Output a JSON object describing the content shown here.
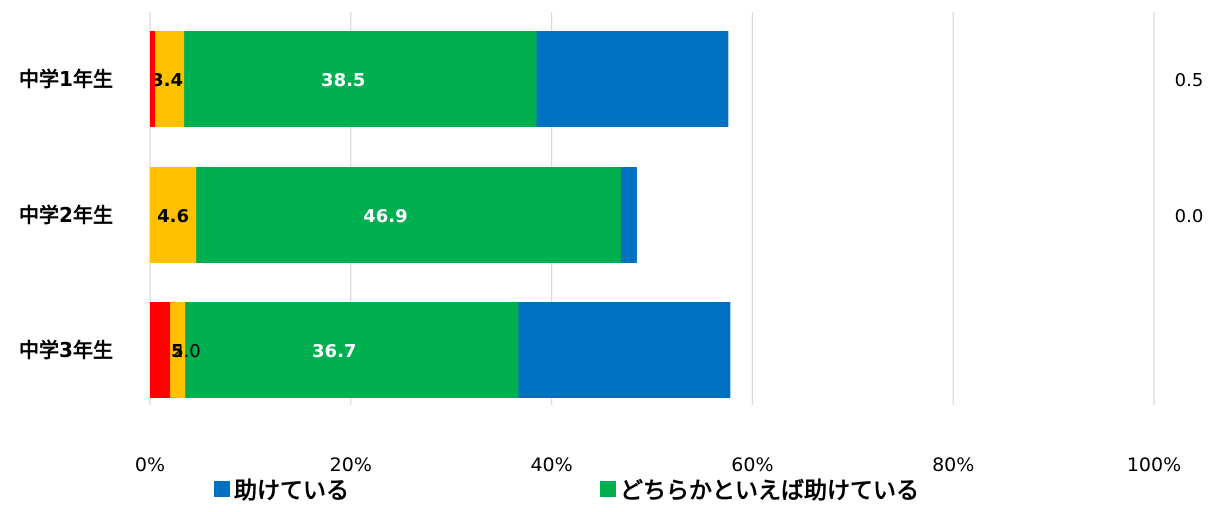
{
  "chart_data": {
    "type": "bar",
    "orientation": "horizontal",
    "stacked": true,
    "categories": [
      "中学1年生",
      "中学2年生",
      "中学3年生"
    ],
    "series": [
      {
        "name": "助けている",
        "color": "#0070c0",
        "label_color": "#ffffff",
        "values": [
          57.6,
          48.5,
          57.8
        ]
      },
      {
        "name": "どちらかといえば助けている",
        "color": "#00b050",
        "label_color": "#ffffff",
        "values": [
          38.5,
          46.9,
          36.7
        ]
      },
      {
        "name": "",
        "color": "#ffc000",
        "label_color": "#000000",
        "values": [
          3.4,
          4.6,
          3.5
        ]
      },
      {
        "name": "",
        "color": "#ff0000",
        "label_color": "#000000",
        "values": [
          0.5,
          0.0,
          2.0
        ]
      }
    ],
    "data_labels": [
      [
        "57.6",
        "38.5",
        "3.4",
        "0.5"
      ],
      [
        "48.5",
        "46.9",
        "4.6",
        "0.0"
      ],
      [
        "57.8",
        "36.7",
        "3.5",
        "2.0"
      ]
    ],
    "x_ticks": [
      "0%",
      "20%",
      "40%",
      "60%",
      "80%",
      "100%"
    ],
    "xlim": [
      0,
      100
    ],
    "grid": true,
    "legend_position": "bottom",
    "gridline_color": "#d9d9d9"
  }
}
